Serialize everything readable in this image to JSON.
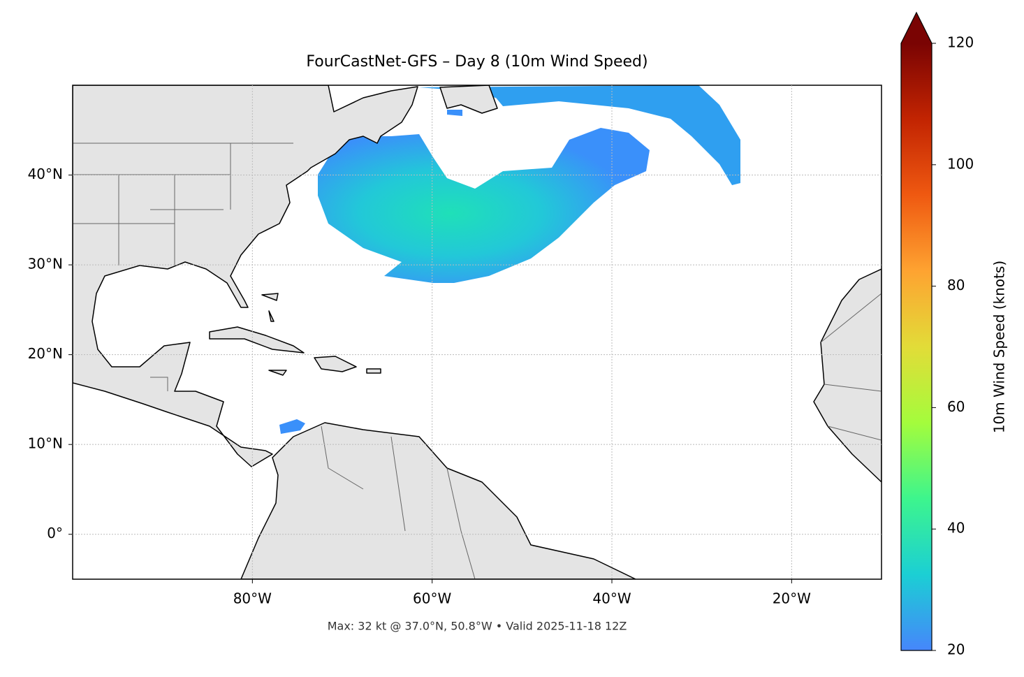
{
  "chart_data": {
    "type": "map",
    "title": "FourCastNet-GFS – Day 8 (10m Wind Speed)",
    "annotation": "Max: 32 kt @ 37.0°N, 50.8°W • Valid 2025-11-18 12Z",
    "xlim": [
      -100,
      -10
    ],
    "ylim": [
      -5,
      50
    ],
    "xticks": [
      {
        "value": -80,
        "label": "80°W"
      },
      {
        "value": -60,
        "label": "60°W"
      },
      {
        "value": -40,
        "label": "40°W"
      },
      {
        "value": -20,
        "label": "20°W"
      }
    ],
    "yticks": [
      {
        "value": 0,
        "label": "0°"
      },
      {
        "value": 10,
        "label": "10°N"
      },
      {
        "value": 20,
        "label": "20°N"
      },
      {
        "value": 30,
        "label": "30°N"
      },
      {
        "value": 40,
        "label": "40°N"
      }
    ],
    "grid": true,
    "colorbar": {
      "label": "10m Wind Speed (knots)",
      "lim": [
        20,
        120
      ],
      "ticks": [
        20,
        40,
        60,
        80,
        100,
        120
      ],
      "extend": "max",
      "colormap": [
        "#4686fb",
        "#1bcfd4",
        "#3df58d",
        "#a4fc3c",
        "#e2dc38",
        "#fea331",
        "#ef5911",
        "#c22402",
        "#7a0403"
      ]
    }
  }
}
